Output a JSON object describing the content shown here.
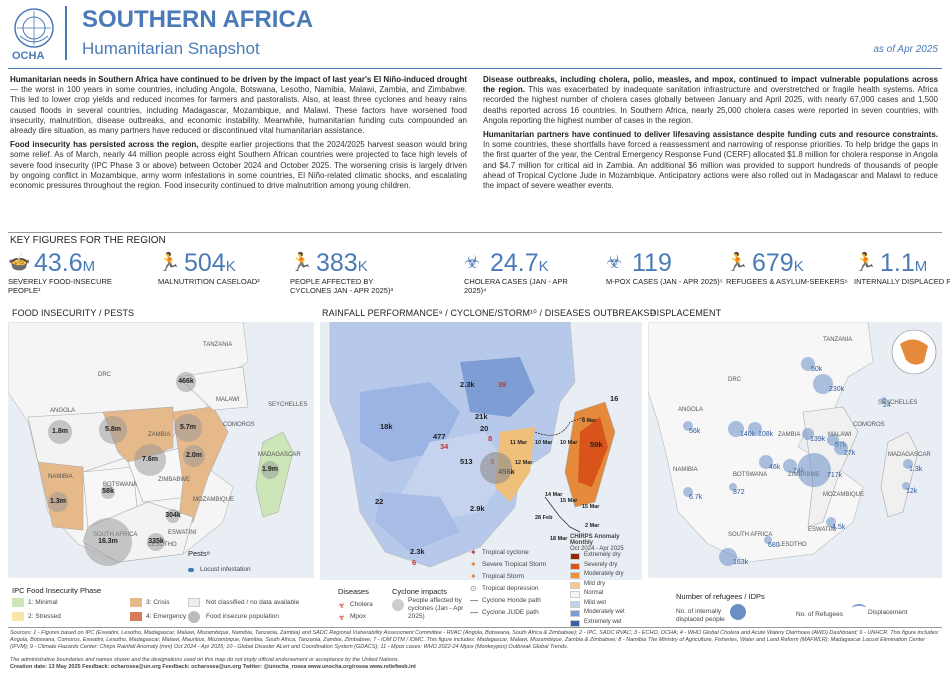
{
  "header": {
    "org": "OCHA",
    "title": "SOUTHERN AFRICA",
    "subtitle": "Humanitarian Snapshot",
    "date": "as of Apr 2025"
  },
  "intro": {
    "p1_bold": "Humanitarian needs in Southern Africa have continued to be driven by the impact of last year's El Niño-induced drought",
    "p1_text": " — the worst in 100 years in some countries, including Angola, Botswana, Lesotho, Namibia, Malawi, Zambia, and Zimbabwe. This led to lower crop yields and reduced incomes for farmers and pastoralists. Also, at least three cyclones and heavy rains caused floods in several countries, including Madagascar, Mozambique, and Malawi. These factors have worsened food insecurity, malnutrition, disease outbreaks, and economic instability. Meanwhile, humanitarian funding cuts compounded an already dire situation, as many partners have reduced or discontinued vital humanitarian assistance.",
    "p2_bold": "Food insecurity has persisted across the region,",
    "p2_text": " despite earlier projections that the 2024/2025 harvest season would bring some relief. As of March, nearly 44 million people across eight Southern African countries were projected to face high levels of severe food insecurity (IPC Phase 3 or above) between October 2024 and October 2025. The worsening crisis is largely driven by ongoing conflict in Mozambique, army worm infestations in some countries, El Niño-related climatic shocks, and escalating economic pressures throughout the region. Food insecurity continued to drive malnutrition among young children.",
    "p3_bold": "Disease outbreaks, including cholera, polio, measles, and mpox, continued to impact vulnerable populations across the region.",
    "p3_text": " This was exacerbated by inadequate sanitation infrastructure and overstretched or fragile health systems. Africa recorded the highest number of cholera cases globally between January and April 2025, with nearly 67,000 cases and 1,500 deaths reported across 16 countries. In Southern Africa, nearly 25,000 cholera cases were reported in seven countries, with Angola reporting the highest number of cases in the region.",
    "p4_bold": "Humanitarian partners have continued to deliver lifesaving assistance despite funding cuts and resource constraints.",
    "p4_text": " In some countries, these shortfalls have forced a reassessment and narrowing of response priorities. To help bridge the gaps in the first quarter of the year, the Central Emergency Response Fund (CERF) allocated $1.8 million for cholera response in Angola and $4.7 million for critical aid in Zambia. An additional $6 million was provided to support hundreds of thousands of people ahead of Tropical Cyclone Jude in Mozambique. Anticipatory actions were also rolled out in Madagascar and Malawi to reduce the impact of severe weather events."
  },
  "key_figures": {
    "title": "KEY FIGURES FOR THE REGION",
    "items": [
      {
        "value": "43.6",
        "unit": "M",
        "label": "SEVERELY FOOD-INSECURE PEOPLE¹",
        "icon": "food-bowl-icon"
      },
      {
        "value": "504",
        "unit": "K",
        "label": "MALNUTRITION CASELOAD²",
        "icon": "malnutrition-icon"
      },
      {
        "value": "383",
        "unit": "K",
        "label": "PEOPLE AFFECTED BY CYCLONES JAN - APR 2025)³",
        "icon": "cyclone-people-icon"
      },
      {
        "value": "24.7",
        "unit": "K",
        "label": "CHOLERA CASES (JAN - APR 2025)⁴",
        "icon": "biohazard-icon"
      },
      {
        "value": "119",
        "unit": "",
        "label": "M-POX CASES (JAN - APR 2025)⁵",
        "icon": "biohazard-icon"
      },
      {
        "value": "679",
        "unit": "K",
        "label": "REFUGEES & ASYLUM-SEEKERS⁶",
        "icon": "refugee-icon"
      },
      {
        "value": "1.1",
        "unit": "M",
        "label": "INTERNALLY DISPLACED PEOPLE⁷",
        "icon": "idp-icon"
      }
    ]
  },
  "maps": {
    "food": {
      "title": "FOOD INSECURITY / PESTS",
      "labels": [
        "DRC",
        "ANGOLA",
        "ZAMBIA",
        "MALAWI",
        "NAMIBIA",
        "BOTSWANA",
        "ZIMBABWE",
        "MOZAMBIQUE",
        "SOUTH AFRICA",
        "ESWATINI",
        "LESOTHO",
        "MADAGASCAR",
        "COMOROS",
        "SEYCHELLES",
        "TANZANIA"
      ],
      "bubbles": [
        "466k",
        "1.8m",
        "5.8m",
        "5.7m",
        "2.0m",
        "7.6m",
        "58k",
        "1.3m",
        "16.3m",
        "335k",
        "304k",
        "1.9m"
      ],
      "legend_title": "IPC Food Insecurity Phase",
      "phases": [
        "1: Minimal",
        "2: Stressed",
        "3: Crisis",
        "4: Emergency"
      ],
      "phase_colors": [
        "#cde6b8",
        "#f7e6a6",
        "#e6b98a",
        "#d97a5a"
      ],
      "not_classified": "Not classified / no data available",
      "locust_pop": "Food insecure population",
      "pests_title": "Pests⁸",
      "locust": "Locust infestation"
    },
    "rain": {
      "title": "RAINFALL PERFORMANCE⁹ / CYCLONE/STORM¹⁰ / DISEASES OUTBREAKS¹¹",
      "counts": [
        "2.3k",
        "39",
        "21k",
        "18k",
        "477",
        "34",
        "20",
        "8",
        "513",
        "3",
        "22",
        "2.9k",
        "2.3k",
        "6",
        "16",
        "59k",
        "456k"
      ],
      "dates": [
        "8 Mar",
        "10 Mar",
        "11 Mar",
        "12 Mar",
        "10 Mar",
        "14 Mar",
        "15 Mar",
        "15 Mar",
        "28 Feb",
        "2 Mar",
        "18 Mar"
      ],
      "diseases_title": "Diseases",
      "cholera": "Cholera",
      "mpox": "Mpox",
      "cyclone_impacts_title": "Cyclone impacts",
      "people_affected": "People affected by cyclones (Jan - Apr 2025)",
      "storm_legend": [
        "Tropical cyclone",
        "Severe Tropical Storm",
        "Tropical Storm",
        "Tropical depression",
        "Cyclone Honde path",
        "Cyclone JUDE path"
      ],
      "chirps_title": "CHIRPS Anomaly Monthly",
      "chirps_sub": "Oct 2024 - Apr 2025",
      "chirps_items": [
        "Extremely dry",
        "Severely dry",
        "Moderately dry",
        "Mild dry",
        "Normal",
        "Mild wet",
        "Moderately wet",
        "Extremely wet"
      ],
      "chirps_colors": [
        "#8c2d04",
        "#d9541a",
        "#f08c3a",
        "#f7c88a",
        "#f5f5f5",
        "#c2d3ee",
        "#7d9dd4",
        "#3b5fa8"
      ]
    },
    "displacement": {
      "title": "DISPLACEMENT",
      "values": [
        "50k",
        "230k",
        "56k",
        "140k",
        "108k",
        "57k",
        "139k",
        "46k",
        "24k",
        "27k",
        "6.7k",
        "872",
        "717k",
        "4.5k",
        "680",
        "163k",
        "1.3k",
        "12k",
        "24"
      ],
      "legend_title": "Number of refugees / IDPs",
      "idp": "No. of internally displaced people",
      "refugees": "No. of Refugees",
      "displacement": "Displacement"
    }
  },
  "footer": {
    "sources": "Sources: 1 - Figures based on IPC (Eswatini, Lesotho, Madagascar, Malawi, Mozambique, Namibia, Tanzania, Zambia) and SADC Regional Vulnerability Assessment Committee - RVAC (Angola, Botswana, South Africa & Zimbabwe); 2 - IPC, SADC RVAC; 3 - ECHO, OCHA; 4 - WHO Global Cholera and Acute Watery Diarrhoea (AWD) Dashboard; 6 - UNHCR. This figure includes: Angola, Botswana, Comoros, Eswatini, Lesotho, Madagascar, Malawi, Mauritius, Mozambique, Namibia, South Africa, Tanzania, Zambia, Zimbabwe; 7 - IOM DTM / IDMC. This figure includes: Madagascar, Malawi, Mozambique, Zambia & Zimbabwe; 8 - Namibia The Ministry of Agriculture, Fisheries, Water and Land Reform (MAFWLR); Madagascar Locust Elimination Center (IFVM); 9 - Climate Hazards Center: Chirps Rainfall Anomaly (mm) Oct 2024 - Apr 2025; 10 - Global Disaster ALert and Coordination System (GDACS); 11 - Mpox cases: WHO 2022-24 Mpox (Monkeypox) Outbreak Global Trends.",
    "disclaimer": "The administrative boundaries and names shown and the designations used on this map do not imply official endorsement or acceptance by the United Nations.",
    "creation": "Creation date: 13 May 2025   Feedback: ocharosea@un.org   Feedback: ocharosea@un.org   Twitter: @unocha_rosea   www.unocha.org/rosea   www.reliefweb.int"
  }
}
